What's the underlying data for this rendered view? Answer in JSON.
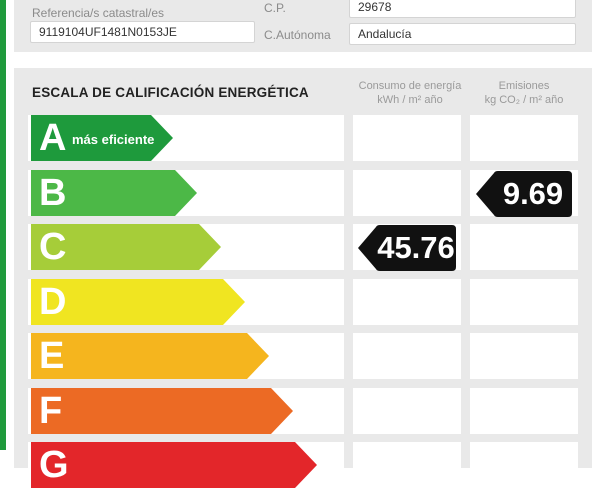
{
  "info": {
    "cadastral_label": "Referencia/s catastral/es",
    "cadastral_value": "9119104UF1481N0153JE",
    "cp_label": "C.P.",
    "cp_value": "29678",
    "region_label": "C.Autónoma",
    "region_value": "Andalucía"
  },
  "scale": {
    "title": "ESCALA DE CALIFICACIÓN ENERGÉTICA",
    "consumption_header": "Consumo de energía",
    "consumption_unit": "kWh / m² año",
    "emissions_header": "Emisiones",
    "emissions_unit": "kg CO₂ / m² año",
    "ratings": [
      {
        "letter": "A",
        "extra": "más eficiente",
        "color": "#1e9a3c"
      },
      {
        "letter": "B",
        "extra": "",
        "color": "#4cb847"
      },
      {
        "letter": "C",
        "extra": "",
        "color": "#a6cd39"
      },
      {
        "letter": "D",
        "extra": "",
        "color": "#f0e521"
      },
      {
        "letter": "E",
        "extra": "",
        "color": "#f5b51e"
      },
      {
        "letter": "F",
        "extra": "",
        "color": "#ec6a24"
      },
      {
        "letter": "G",
        "extra": "",
        "color": "#e3262a"
      }
    ],
    "consumption_rating": "C",
    "consumption_value": "45.76",
    "emissions_rating": "B",
    "emissions_value": "9.69"
  }
}
